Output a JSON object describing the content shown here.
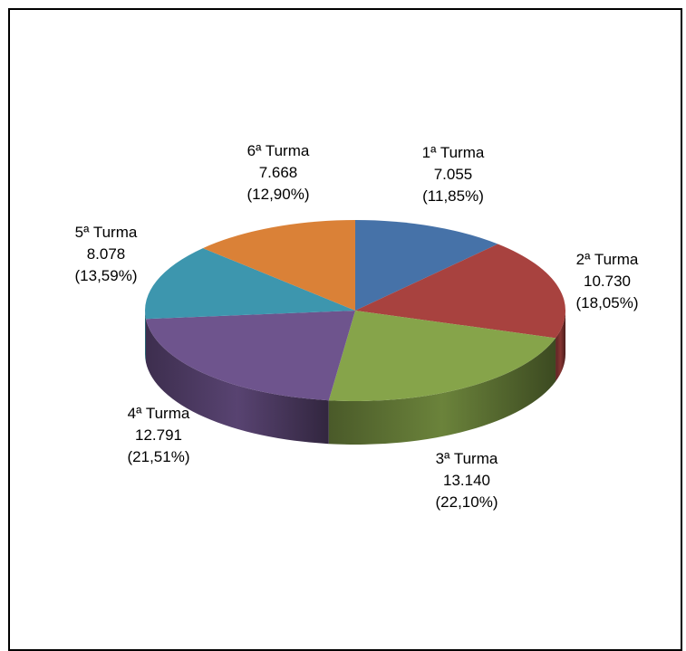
{
  "chart_data": {
    "type": "pie",
    "style": "3d",
    "legend": "none",
    "slices": [
      {
        "name": "1ª Turma",
        "value": 7055,
        "value_label": "7.055",
        "percent_label": "(11,85%)",
        "color": "#4672A8"
      },
      {
        "name": "2ª Turma",
        "value": 10730,
        "value_label": "10.730",
        "percent_label": "(18,05%)",
        "color": "#A8423F"
      },
      {
        "name": "3ª Turma",
        "value": 13140,
        "value_label": "13.140",
        "percent_label": "(22,10%)",
        "color": "#86A44A"
      },
      {
        "name": "4ª Turma",
        "value": 12791,
        "value_label": "12.791",
        "percent_label": "(21,51%)",
        "color": "#6E548D"
      },
      {
        "name": "5ª Turma",
        "value": 8078,
        "value_label": "8.078",
        "percent_label": "(13,59%)",
        "color": "#3D96AE"
      },
      {
        "name": "6ª Turma",
        "value": 7668,
        "value_label": "7.668",
        "percent_label": "(12,90%)",
        "color": "#DA8137"
      }
    ]
  }
}
